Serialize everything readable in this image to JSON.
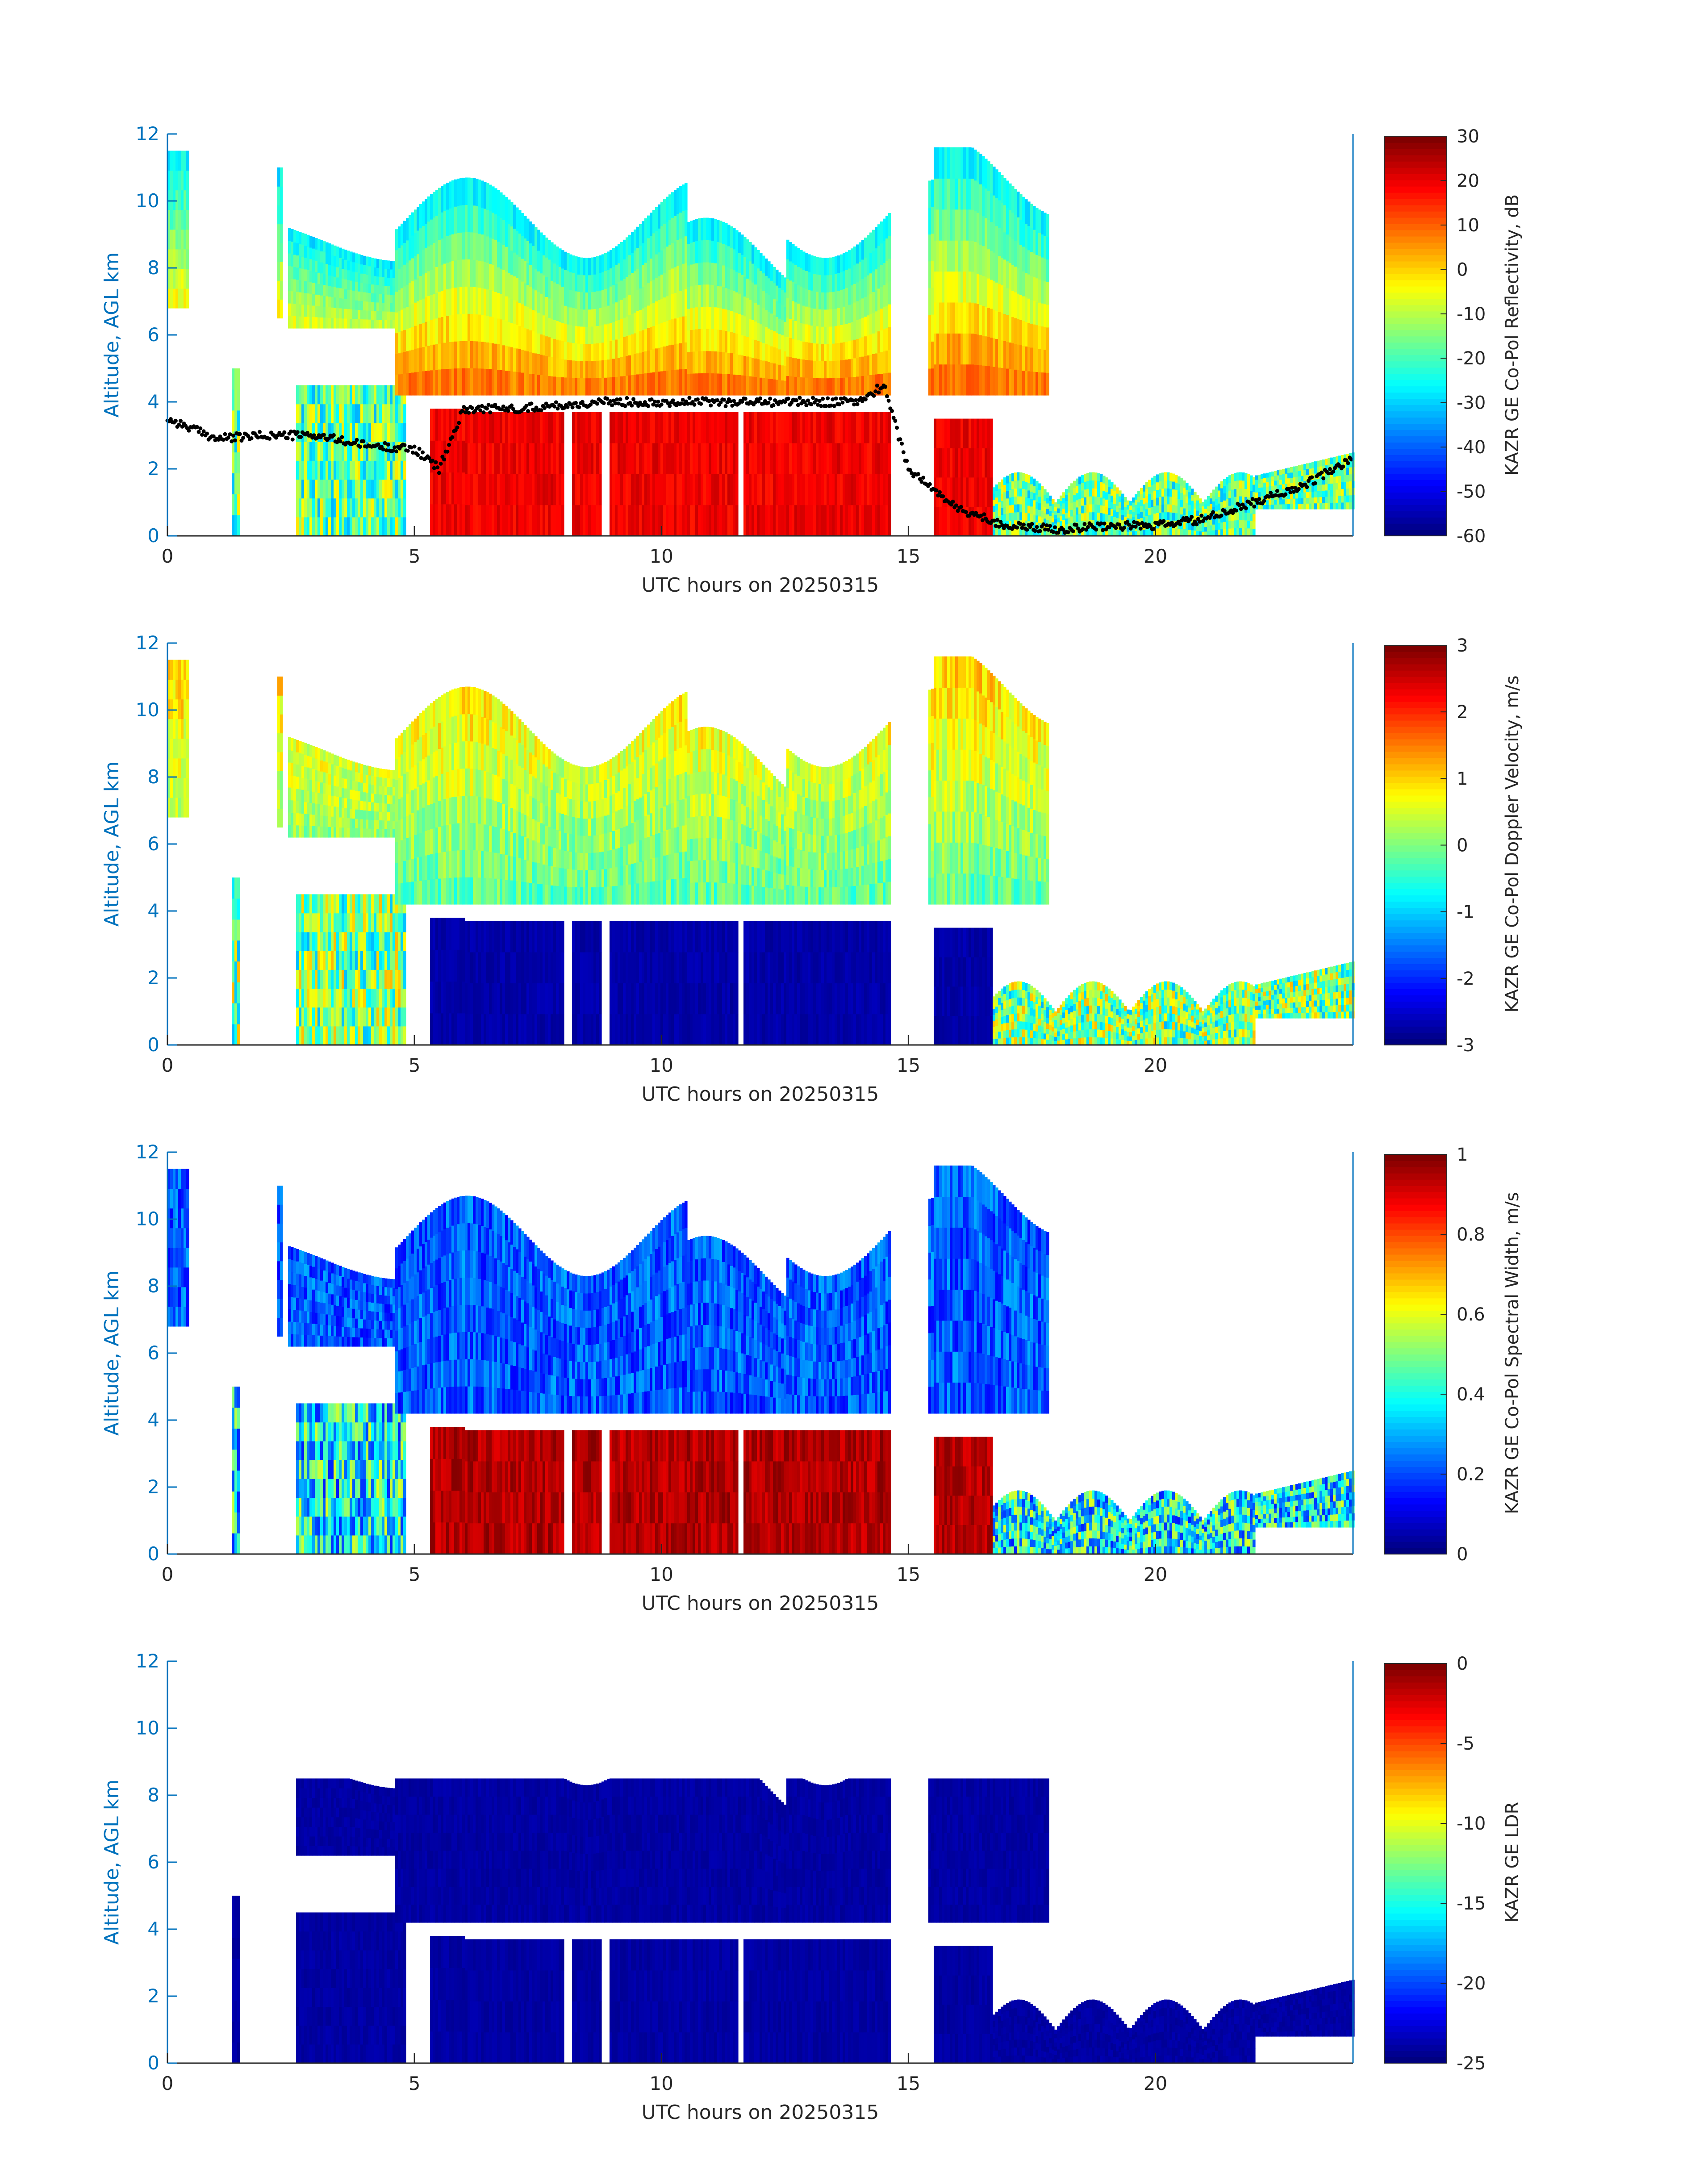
{
  "figure": {
    "panels": [
      {
        "id": "reflectivity",
        "ylabel": "Altitude, AGL km",
        "xlabel": "UTC hours on 20250315",
        "colorbar_label": "KAZR GE Co-Pol Reflectivity, dB",
        "colorbar_ticks": [
          "30",
          "20",
          "10",
          "0",
          "-10",
          "-20",
          "-30",
          "-40",
          "-50",
          "-60"
        ],
        "colorbar_range": [
          -60,
          30
        ],
        "has_cloud_base_overlay": true
      },
      {
        "id": "doppler",
        "ylabel": "Altitude, AGL km",
        "xlabel": "UTC hours on 20250315",
        "colorbar_label": "KAZR GE Co-Pol Doppler Velocity, m/s",
        "colorbar_ticks": [
          "3",
          "2",
          "1",
          "0",
          "-1",
          "-2",
          "-3"
        ],
        "colorbar_range": [
          -3,
          3
        ],
        "has_cloud_base_overlay": false
      },
      {
        "id": "spectral-width",
        "ylabel": "Altitude, AGL km",
        "xlabel": "UTC hours on 20250315",
        "colorbar_label": "KAZR GE Co-Pol Spectral Width, m/s",
        "colorbar_ticks": [
          "1",
          "0.8",
          "0.6",
          "0.4",
          "0.2",
          "0"
        ],
        "colorbar_range": [
          0,
          1
        ],
        "has_cloud_base_overlay": false
      },
      {
        "id": "ldr",
        "ylabel": "Altitude, AGL km",
        "xlabel": "UTC hours on 20250315",
        "colorbar_label": "KAZR GE LDR",
        "colorbar_ticks": [
          "0",
          "-5",
          "-10",
          "-15",
          "-20",
          "-25"
        ],
        "colorbar_range": [
          -25,
          0
        ],
        "has_cloud_base_overlay": false
      }
    ],
    "x_ticks": [
      "0",
      "5",
      "10",
      "15",
      "20"
    ],
    "y_ticks": [
      "0",
      "2",
      "4",
      "6",
      "8",
      "10",
      "12"
    ],
    "colors": {
      "axis": "#0072BD",
      "text": "#262626",
      "cloud_base_marker": "#000000"
    }
  },
  "chart_data": [
    {
      "type": "heatmap",
      "panel": "reflectivity",
      "x_range": [
        0,
        24
      ],
      "y_range": [
        0,
        12
      ],
      "zlabel": "KAZR GE Co-Pol Reflectivity, dB",
      "zlim": [
        -60,
        30
      ],
      "colormap": "jet",
      "cloud_base_hours": [
        0,
        1,
        2,
        3,
        4,
        5,
        5.5,
        6,
        7,
        8,
        9,
        10,
        11,
        12,
        13,
        14,
        14.5,
        15,
        16,
        17,
        18,
        19,
        20,
        21,
        22,
        23,
        24
      ],
      "cloud_base_km": [
        3.5,
        2.9,
        3.0,
        3.0,
        2.7,
        2.6,
        2.0,
        3.8,
        3.8,
        3.9,
        4.0,
        4.0,
        4.0,
        4.0,
        4.0,
        4.0,
        4.5,
        2.0,
        0.8,
        0.3,
        0.2,
        0.3,
        0.3,
        0.5,
        1.0,
        1.5,
        2.3
      ]
    },
    {
      "type": "heatmap",
      "panel": "doppler",
      "x_range": [
        0,
        24
      ],
      "y_range": [
        0,
        12
      ],
      "zlabel": "KAZR GE Co-Pol Doppler Velocity, m/s",
      "zlim": [
        -3,
        3
      ],
      "colormap": "jet"
    },
    {
      "type": "heatmap",
      "panel": "spectral-width",
      "x_range": [
        0,
        24
      ],
      "y_range": [
        0,
        12
      ],
      "zlabel": "KAZR GE Co-Pol Spectral Width, m/s",
      "zlim": [
        0,
        1
      ],
      "colormap": "jet"
    },
    {
      "type": "heatmap",
      "panel": "ldr",
      "x_range": [
        0,
        24
      ],
      "y_range": [
        0,
        12
      ],
      "zlabel": "KAZR GE LDR",
      "zlim": [
        -25,
        0
      ],
      "colormap": "jet"
    }
  ]
}
